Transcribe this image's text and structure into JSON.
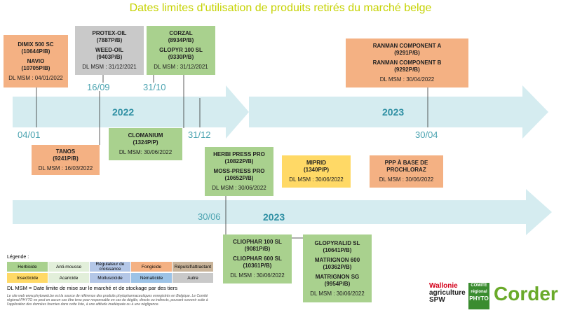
{
  "header": {
    "title": "Dates limites d'utilisation de produits retirés du marché belge"
  },
  "timelines": [
    {
      "years": [
        "2022",
        "2023"
      ],
      "dates": [
        "04/01",
        "16/09",
        "31/10",
        "31/12",
        "30/04"
      ]
    },
    {
      "years": [
        "2023"
      ],
      "dates": [
        "30/06"
      ]
    }
  ],
  "boxes": [
    {
      "color": "#f4b183",
      "products": [
        {
          "name": "DIMIX 500 SC",
          "code": "(10644P/B)"
        },
        {
          "name": "NAVIO",
          "code": "(10705P/B)"
        }
      ],
      "dl": "DL MSM : 04/01/2022"
    },
    {
      "color": "#c9c9c9",
      "products": [
        {
          "name": "PROTEX-OIL",
          "code": "(7887P/B)"
        },
        {
          "name": "WEED-OIL",
          "code": "(9403P/B)"
        }
      ],
      "dl": "DL MSM : 31/12/2021"
    },
    {
      "color": "#a9d18e",
      "products": [
        {
          "name": "CORZAL",
          "code": "(8934P/B)"
        },
        {
          "name": "GLOPYR 100 SL",
          "code": "(9330P/B)"
        }
      ],
      "dl": "DL MSM : 31/12/2021"
    },
    {
      "color": "#f4b183",
      "products": [
        {
          "name": "RANMAN COMPONENT A",
          "code": "(9291P/B)"
        },
        {
          "name": "RANMAN COMPONENT B",
          "code": "(9292P/B)"
        }
      ],
      "dl": "DL MSM : 30/04/2022"
    },
    {
      "color": "#f4b183",
      "products": [
        {
          "name": "TANOS",
          "code": "(9241P/B)"
        }
      ],
      "dl": "DL MSM : 16/03/2022"
    },
    {
      "color": "#a9d18e",
      "products": [
        {
          "name": "CLOMANIUM",
          "code": "(1324P/P)"
        }
      ],
      "dl": "DL MSM: 30/06/2022"
    },
    {
      "color": "#a9d18e",
      "products": [
        {
          "name": "HERBI PRESS PRO",
          "code": "(10822P/B)"
        },
        {
          "name": "MOSS-PRESS PRO",
          "code": "(10652P/B)"
        }
      ],
      "dl": "DL MSM : 30/06/2022"
    },
    {
      "color": "#ffd966",
      "products": [
        {
          "name": "MIPRID",
          "code": "(1340P/P)"
        }
      ],
      "dl": "DL MSM : 30/06/2022"
    },
    {
      "color": "#f4b183",
      "products": [
        {
          "name": "PPP À BASE DE",
          "code": "PROCHLORAZ"
        }
      ],
      "dl": "DL MSM : 30/06/2022"
    },
    {
      "color": "#a9d18e",
      "products": [
        {
          "name": "CLIOPHAR 100 SL",
          "code": "(9081P/B)"
        },
        {
          "name": "CLIOPHAR 600 SL",
          "code": "(10361P/B)"
        }
      ],
      "dl": "DL MSM : 30/06/2022"
    },
    {
      "color": "#a9d18e",
      "products": [
        {
          "name": "GLOPYRALID SL",
          "code": "(10641P/B)"
        },
        {
          "name": "MATRIGNON 600",
          "code": "(10362P/B)"
        },
        {
          "name": "MATRIGNON SG",
          "code": "(9954P/B)"
        }
      ],
      "dl": "DL MSM : 30/06/2022"
    }
  ],
  "legend": {
    "title": "Légende :",
    "items": [
      {
        "label": "Herbicide",
        "color": "#a9d18e"
      },
      {
        "label": "Anti-mousse",
        "color": "#e2efda"
      },
      {
        "label": "Régulateur de croissance",
        "color": "#b4c7e7"
      },
      {
        "label": "Fongicide",
        "color": "#f4b183"
      },
      {
        "label": "Répulsif/attractant",
        "color": "#c9b49a"
      },
      {
        "label": "Insecticide",
        "color": "#ffd966"
      },
      {
        "label": "Acaricide",
        "color": "#e2efda"
      },
      {
        "label": "Molluscicide",
        "color": "#b4c7e7"
      },
      {
        "label": "Nématicide",
        "color": "#9dc3e6"
      },
      {
        "label": "Autre",
        "color": "#c9c9c9"
      }
    ],
    "note": "DL MSM = Date limite de mise sur le marché et de stockage par des tiers"
  },
  "footer": {
    "disclaimer": "Le site web www.phytoweb.be est la source de référence des produits phytopharmaceutiques enregistrés en Belgique. Le Comité régional PHYTO ne peut en aucun cas être tenu pour responsable en cas de dégâts, directs ou indirects, pouvant survenir suite à l'application des données fournies dans cette liste, à une attitude inadéquate ou à une négligence.",
    "logos": [
      "Wallonie",
      "agriculture",
      "SPW",
      "COMITÉ",
      "régional",
      "PHYTO",
      "Corder"
    ]
  }
}
